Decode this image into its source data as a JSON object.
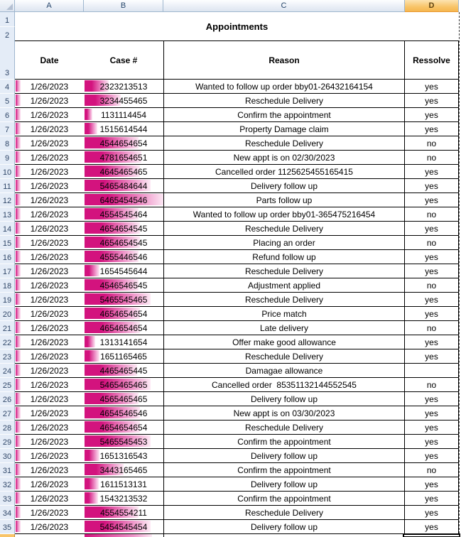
{
  "app": "spreadsheet",
  "title_cell": "Appointments",
  "column_headers": [
    "A",
    "B",
    "C",
    "D"
  ],
  "selected_column": "D",
  "selected_row": "36",
  "table": {
    "headers": {
      "date": "Date",
      "case": "Case #",
      "reason": "Reason",
      "resolve": "Ressolve"
    },
    "rows": [
      {
        "row": "4",
        "date": "1/26/2023",
        "case_number": "2323213513",
        "reason": "Wanted to follow up order bby01-26432164154",
        "resolve": "yes"
      },
      {
        "row": "5",
        "date": "1/26/2023",
        "case_number": "3234455465",
        "reason": "Reschedule Delivery",
        "resolve": "yes"
      },
      {
        "row": "6",
        "date": "1/26/2023",
        "case_number": "1131114454",
        "reason": "Confirm the appointment",
        "resolve": "yes"
      },
      {
        "row": "7",
        "date": "1/26/2023",
        "case_number": "1515614544",
        "reason": "Property Damage claim",
        "resolve": "yes"
      },
      {
        "row": "8",
        "date": "1/26/2023",
        "case_number": "4544654654",
        "reason": "Reschedule Delivery",
        "resolve": "no"
      },
      {
        "row": "9",
        "date": "1/26/2023",
        "case_number": "4781654651",
        "reason": "New appt is on 02/30/2023",
        "resolve": "no"
      },
      {
        "row": "10",
        "date": "1/26/2023",
        "case_number": "4645465465",
        "reason": "Cancelled order 1125625455165415",
        "resolve": "yes"
      },
      {
        "row": "11",
        "date": "1/26/2023",
        "case_number": "5465484644",
        "reason": "Delivery follow up",
        "resolve": "yes"
      },
      {
        "row": "12",
        "date": "1/26/2023",
        "case_number": "6465454546",
        "reason": "Parts follow up",
        "resolve": "yes"
      },
      {
        "row": "13",
        "date": "1/26/2023",
        "case_number": "4554545464",
        "reason": "Wanted to follow up order bby01-365475216454",
        "resolve": "no"
      },
      {
        "row": "14",
        "date": "1/26/2023",
        "case_number": "4654654545",
        "reason": "Reschedule Delivery",
        "resolve": "yes"
      },
      {
        "row": "15",
        "date": "1/26/2023",
        "case_number": "4654654545",
        "reason": "Placing an order",
        "resolve": "no"
      },
      {
        "row": "16",
        "date": "1/26/2023",
        "case_number": "4555446546",
        "reason": "Refund follow up",
        "resolve": "yes"
      },
      {
        "row": "17",
        "date": "1/26/2023",
        "case_number": "1654545644",
        "reason": "Reschedule Delivery",
        "resolve": "yes"
      },
      {
        "row": "18",
        "date": "1/26/2023",
        "case_number": "4546546545",
        "reason": "Adjustment applied",
        "resolve": "no"
      },
      {
        "row": "19",
        "date": "1/26/2023",
        "case_number": "5465545465",
        "reason": "Reschedule Delivery",
        "resolve": "yes"
      },
      {
        "row": "20",
        "date": "1/26/2023",
        "case_number": "4654654654",
        "reason": "Price match",
        "resolve": "yes"
      },
      {
        "row": "21",
        "date": "1/26/2023",
        "case_number": "4654654654",
        "reason": "Late delivery",
        "resolve": "no"
      },
      {
        "row": "22",
        "date": "1/26/2023",
        "case_number": "1313141654",
        "reason": "Offer make good allowance",
        "resolve": "yes"
      },
      {
        "row": "23",
        "date": "1/26/2023",
        "case_number": "1651165465",
        "reason": "Reschedule Delivery",
        "resolve": "yes"
      },
      {
        "row": "24",
        "date": "1/26/2023",
        "case_number": "4465465445",
        "reason": "Damagae allowance",
        "resolve": ""
      },
      {
        "row": "25",
        "date": "1/26/2023",
        "case_number": "5465465465",
        "reason": "Cancelled order  85351132144552545",
        "resolve": "no"
      },
      {
        "row": "26",
        "date": "1/26/2023",
        "case_number": "4565465465",
        "reason": "Delivery follow up",
        "resolve": "yes"
      },
      {
        "row": "27",
        "date": "1/26/2023",
        "case_number": "4654546546",
        "reason": "New appt is on 03/30/2023",
        "resolve": "yes"
      },
      {
        "row": "28",
        "date": "1/26/2023",
        "case_number": "4654654654",
        "reason": "Reschedule Delivery",
        "resolve": "yes"
      },
      {
        "row": "29",
        "date": "1/26/2023",
        "case_number": "5465545453",
        "reason": "Confirm the appointment",
        "resolve": "yes"
      },
      {
        "row": "30",
        "date": "1/26/2023",
        "case_number": "1651316543",
        "reason": "Delivery follow up",
        "resolve": "yes"
      },
      {
        "row": "31",
        "date": "1/26/2023",
        "case_number": "3443165465",
        "reason": "Confirm the appointment",
        "resolve": "no"
      },
      {
        "row": "32",
        "date": "1/26/2023",
        "case_number": "1611513131",
        "reason": "Delivery follow up",
        "resolve": "yes"
      },
      {
        "row": "33",
        "date": "1/26/2023",
        "case_number": "1543213532",
        "reason": "Confirm the appointment",
        "resolve": "yes"
      },
      {
        "row": "34",
        "date": "1/26/2023",
        "case_number": "4554554211",
        "reason": "Reschedule Delivery",
        "resolve": "yes"
      },
      {
        "row": "35",
        "date": "1/26/2023",
        "case_number": "5454545454",
        "reason": "Delivery follow up",
        "resolve": "yes"
      }
    ],
    "row_labels_top": [
      "1",
      "2",
      "3"
    ]
  },
  "colors": {
    "databar": "#d3137e",
    "selected_header": "#f8c468",
    "header_bg": "#e4ecf7",
    "grid_border": "#9eb6ce"
  }
}
